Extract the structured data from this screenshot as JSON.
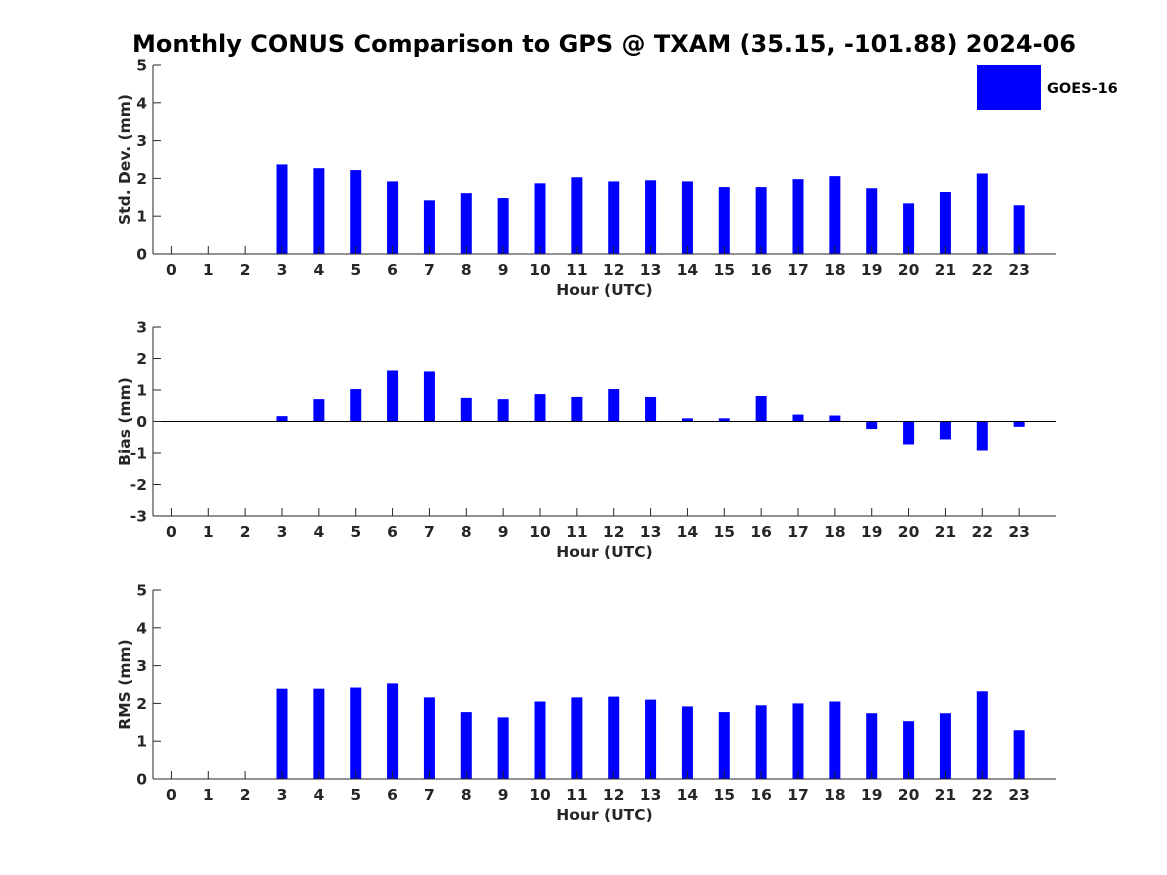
{
  "title": "Monthly CONUS Comparison to GPS @ TXAM (35.15, -101.88) 2024-06",
  "legend": {
    "label": "GOES-16",
    "color": "#0000ff"
  },
  "chart_data": [
    {
      "type": "bar",
      "xlabel": "Hour (UTC)",
      "ylabel": "Std. Dev. (mm)",
      "ylim": [
        0,
        5
      ],
      "yticks": [
        0,
        1,
        2,
        3,
        4,
        5
      ],
      "categories": [
        "0",
        "1",
        "2",
        "3",
        "4",
        "5",
        "6",
        "7",
        "8",
        "9",
        "10",
        "11",
        "12",
        "13",
        "14",
        "15",
        "16",
        "17",
        "18",
        "19",
        "20",
        "21",
        "22",
        "23"
      ],
      "series": [
        {
          "name": "GOES-16",
          "values": [
            0,
            0,
            0,
            2.37,
            2.27,
            2.22,
            1.92,
            1.42,
            1.61,
            1.48,
            1.87,
            2.03,
            1.92,
            1.95,
            1.92,
            1.77,
            1.77,
            1.98,
            2.06,
            1.74,
            1.34,
            1.64,
            2.13,
            1.29
          ]
        }
      ]
    },
    {
      "type": "bar",
      "xlabel": "Hour (UTC)",
      "ylabel": "Bias (mm)",
      "ylim": [
        -3,
        3
      ],
      "yticks": [
        -3,
        -2,
        -1,
        0,
        1,
        2,
        3
      ],
      "categories": [
        "0",
        "1",
        "2",
        "3",
        "4",
        "5",
        "6",
        "7",
        "8",
        "9",
        "10",
        "11",
        "12",
        "13",
        "14",
        "15",
        "16",
        "17",
        "18",
        "19",
        "20",
        "21",
        "22",
        "23"
      ],
      "series": [
        {
          "name": "GOES-16",
          "values": [
            0,
            0,
            0,
            0.17,
            0.71,
            1.03,
            1.62,
            1.59,
            0.75,
            0.71,
            0.87,
            0.78,
            1.03,
            0.78,
            0.1,
            0.1,
            0.81,
            0.22,
            0.19,
            -0.24,
            -0.73,
            -0.57,
            -0.92,
            -0.17
          ]
        }
      ]
    },
    {
      "type": "bar",
      "xlabel": "Hour (UTC)",
      "ylabel": "RMS (mm)",
      "ylim": [
        0,
        5
      ],
      "yticks": [
        0,
        1,
        2,
        3,
        4,
        5
      ],
      "categories": [
        "0",
        "1",
        "2",
        "3",
        "4",
        "5",
        "6",
        "7",
        "8",
        "9",
        "10",
        "11",
        "12",
        "13",
        "14",
        "15",
        "16",
        "17",
        "18",
        "19",
        "20",
        "21",
        "22",
        "23"
      ],
      "series": [
        {
          "name": "GOES-16",
          "values": [
            0,
            0,
            0,
            2.39,
            2.39,
            2.42,
            2.53,
            2.16,
            1.77,
            1.63,
            2.05,
            2.16,
            2.18,
            2.1,
            1.92,
            1.77,
            1.95,
            2.0,
            2.05,
            1.74,
            1.53,
            1.74,
            2.32,
            1.29
          ]
        }
      ]
    }
  ]
}
